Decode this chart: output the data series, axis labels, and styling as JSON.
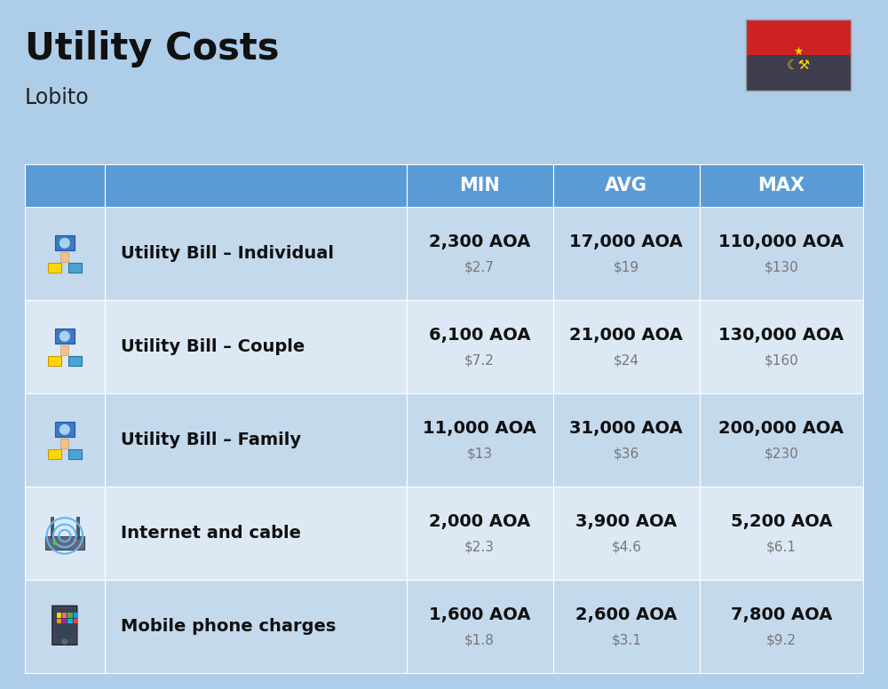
{
  "title": "Utility Costs",
  "subtitle": "Lobito",
  "background_color": "#aecde8",
  "header_bg_color": "#5b9bd5",
  "row_bg_color_1": "#c5d9ed",
  "row_bg_color_2": "#dce9f5",
  "header_text_color": "#ffffff",
  "header_labels": [
    "MIN",
    "AVG",
    "MAX"
  ],
  "rows": [
    {
      "label": "Utility Bill – Individual",
      "min_aoa": "2,300 AOA",
      "min_usd": "$2.7",
      "avg_aoa": "17,000 AOA",
      "avg_usd": "$19",
      "max_aoa": "110,000 AOA",
      "max_usd": "$130",
      "icon": "utility"
    },
    {
      "label": "Utility Bill – Couple",
      "min_aoa": "6,100 AOA",
      "min_usd": "$7.2",
      "avg_aoa": "21,000 AOA",
      "avg_usd": "$24",
      "max_aoa": "130,000 AOA",
      "max_usd": "$160",
      "icon": "utility"
    },
    {
      "label": "Utility Bill – Family",
      "min_aoa": "11,000 AOA",
      "min_usd": "$13",
      "avg_aoa": "31,000 AOA",
      "avg_usd": "$36",
      "max_aoa": "200,000 AOA",
      "max_usd": "$230",
      "icon": "utility"
    },
    {
      "label": "Internet and cable",
      "min_aoa": "2,000 AOA",
      "min_usd": "$2.3",
      "avg_aoa": "3,900 AOA",
      "avg_usd": "$4.6",
      "max_aoa": "5,200 AOA",
      "max_usd": "$6.1",
      "icon": "internet"
    },
    {
      "label": "Mobile phone charges",
      "min_aoa": "1,600 AOA",
      "min_usd": "$1.8",
      "avg_aoa": "2,600 AOA",
      "avg_usd": "$3.1",
      "max_aoa": "7,800 AOA",
      "max_usd": "$9.2",
      "icon": "mobile"
    }
  ],
  "aoa_fontsize": 14,
  "usd_fontsize": 11,
  "label_fontsize": 14,
  "header_fontsize": 15,
  "title_fontsize": 30,
  "subtitle_fontsize": 17,
  "flag_red": "#cc2222",
  "flag_dark": "#3d3d4d",
  "flag_symbol_color": "#FFD700"
}
